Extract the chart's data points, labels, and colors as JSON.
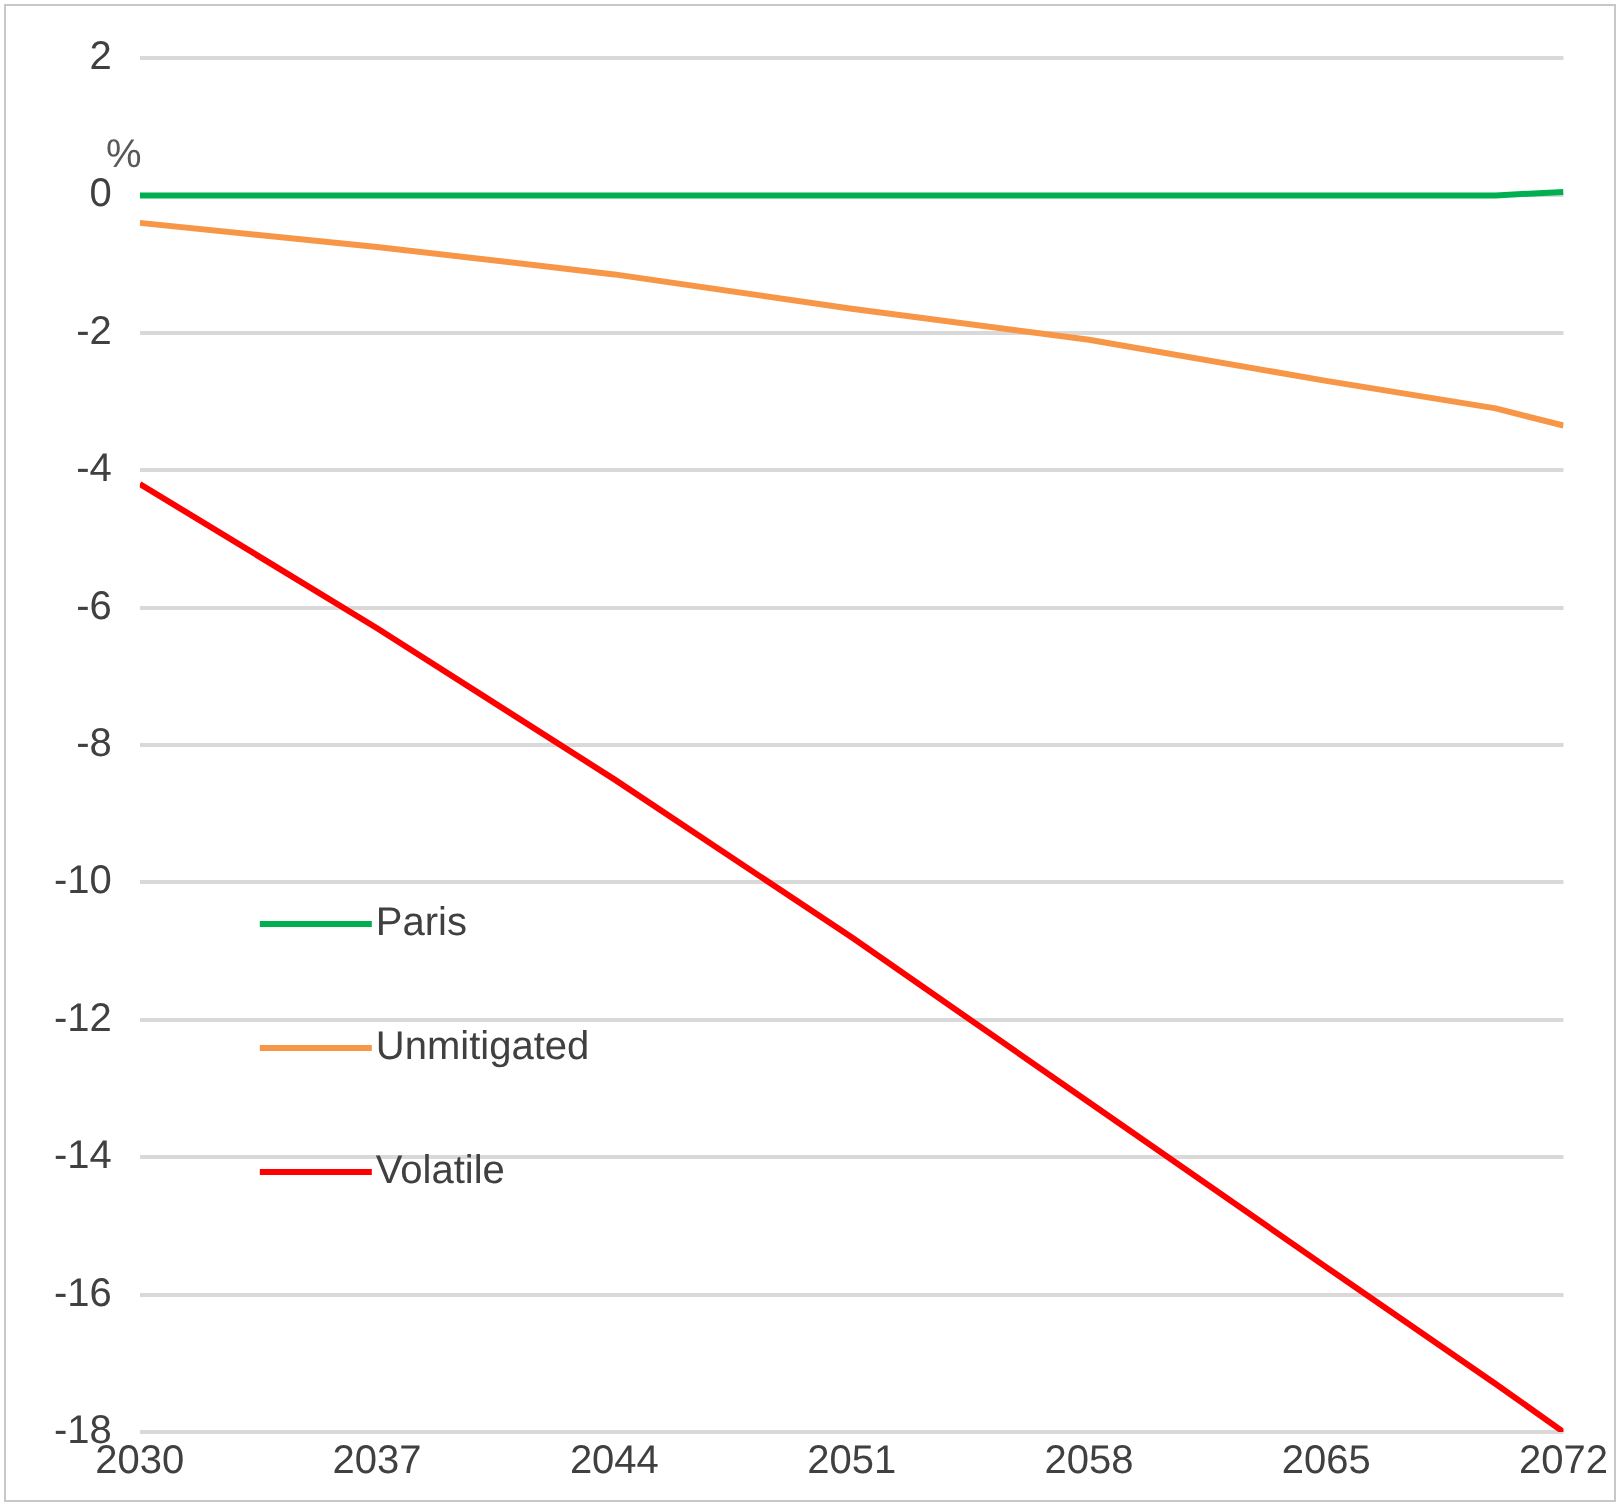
{
  "chart_data": {
    "type": "line",
    "ylabel": "%",
    "x": [
      2030,
      2037,
      2044,
      2051,
      2058,
      2065,
      2070,
      2072
    ],
    "series": [
      {
        "name": "Paris",
        "color": "#00b050",
        "values": [
          0,
          0,
          0,
          0,
          0,
          0,
          0,
          0.05
        ]
      },
      {
        "name": "Unmitigated",
        "color": "#f79646",
        "values": [
          -0.4,
          -0.75,
          -1.15,
          -1.65,
          -2.1,
          -2.7,
          -3.1,
          -3.35
        ]
      },
      {
        "name": "Volatile",
        "color": "#ff0000",
        "values": [
          -4.2,
          -6.3,
          -8.5,
          -10.8,
          -13.2,
          -15.6,
          -17.3,
          -18.0
        ]
      }
    ],
    "xlim": [
      2030,
      2072
    ],
    "xticks": [
      2030,
      2037,
      2044,
      2051,
      2058,
      2065,
      2072
    ],
    "ylim": [
      -18,
      2
    ],
    "yticks": [
      2,
      0,
      -2,
      -4,
      -6,
      -8,
      -10,
      -12,
      -14,
      -16,
      -18
    ],
    "grid": "y",
    "legend": "bottom left",
    "marker": "none",
    "line_style": "solid"
  }
}
